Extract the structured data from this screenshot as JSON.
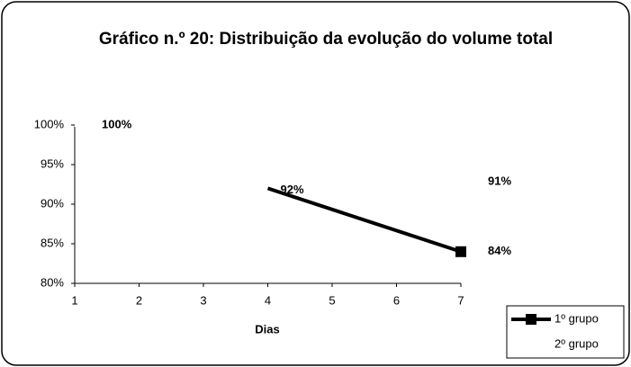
{
  "chart_data": {
    "type": "line",
    "title": "Gráfico n.º 20: Distribuição da evolução do volume total",
    "x_label": "Dias",
    "xlim": [
      1,
      7
    ],
    "xticks": [
      1,
      2,
      3,
      4,
      5,
      6,
      7
    ],
    "ylim": [
      80,
      100
    ],
    "yticks": [
      {
        "value": 80,
        "label": "80%"
      },
      {
        "value": 85,
        "label": "85%"
      },
      {
        "value": 90,
        "label": "90%"
      },
      {
        "value": 95,
        "label": "95%"
      },
      {
        "value": 100,
        "label": "100%"
      }
    ],
    "grid": false,
    "legend": "bottom-right",
    "series": [
      {
        "name": "1º grupo",
        "color": "#000000",
        "x": [
          4,
          7
        ],
        "values": [
          92,
          84
        ],
        "value_labels": [
          "92%",
          "84%"
        ]
      },
      {
        "name": "2º grupo",
        "color": "#ffffff",
        "x": [
          1,
          7
        ],
        "values": [
          100,
          91
        ],
        "value_labels": [
          "100%",
          "91%"
        ]
      }
    ]
  }
}
